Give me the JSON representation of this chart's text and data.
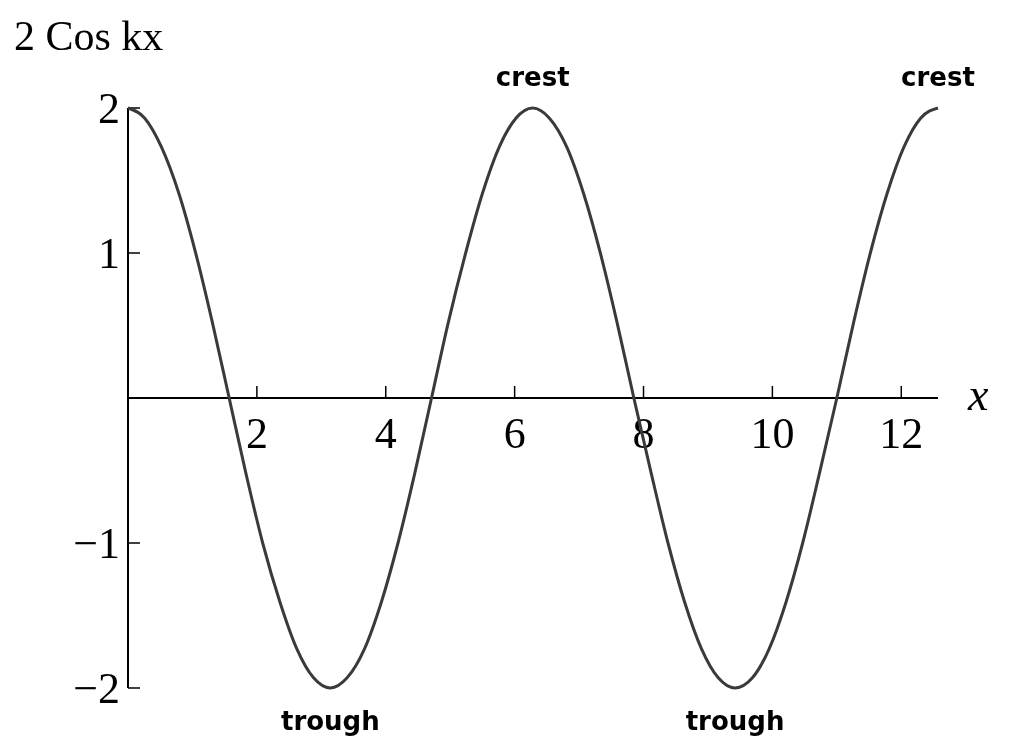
{
  "chart_data": {
    "type": "line",
    "ylabel": "2 Cos kx",
    "xlabel": "x",
    "x": [
      0,
      0.26,
      0.52,
      0.79,
      1.05,
      1.31,
      1.57,
      1.83,
      2.09,
      2.36,
      2.62,
      2.88,
      3.14,
      3.4,
      3.67,
      3.93,
      4.19,
      4.45,
      4.71,
      4.97,
      5.24,
      5.5,
      5.76,
      6.02,
      6.28,
      6.54,
      6.81,
      7.07,
      7.33,
      7.59,
      7.85,
      8.12,
      8.38,
      8.64,
      8.9,
      9.16,
      9.42,
      9.69,
      9.95,
      10.21,
      10.47,
      10.73,
      11.0,
      11.26,
      11.52,
      11.78,
      12.04,
      12.3,
      12.57
    ],
    "series": [
      {
        "color": "#3a3a3a",
        "values": [
          2,
          1.93,
          1.73,
          1.41,
          1,
          0.52,
          0,
          -0.52,
          -1,
          -1.41,
          -1.73,
          -1.93,
          -2,
          -1.93,
          -1.73,
          -1.41,
          -1,
          -0.52,
          0,
          0.52,
          1,
          1.41,
          1.73,
          1.93,
          2,
          1.93,
          1.73,
          1.41,
          1,
          0.52,
          0,
          -0.52,
          -1,
          -1.41,
          -1.73,
          -1.93,
          -2,
          -1.93,
          -1.73,
          -1.41,
          -1,
          -0.52,
          0,
          0.52,
          1,
          1.41,
          1.73,
          1.93,
          2
        ]
      }
    ],
    "xlim": [
      0,
      12.57
    ],
    "ylim": [
      -2,
      2
    ],
    "xticks": [
      2,
      4,
      6,
      8,
      10,
      12
    ],
    "yticks": [
      -2,
      -1,
      1,
      2
    ],
    "grid": false,
    "annotations": [
      {
        "text": "crest",
        "x": 6.28,
        "y": 2
      },
      {
        "text": "crest",
        "x": 12.57,
        "y": 2
      },
      {
        "text": "trough",
        "x": 3.14,
        "y": -2
      },
      {
        "text": "trough",
        "x": 9.42,
        "y": -2
      }
    ]
  }
}
